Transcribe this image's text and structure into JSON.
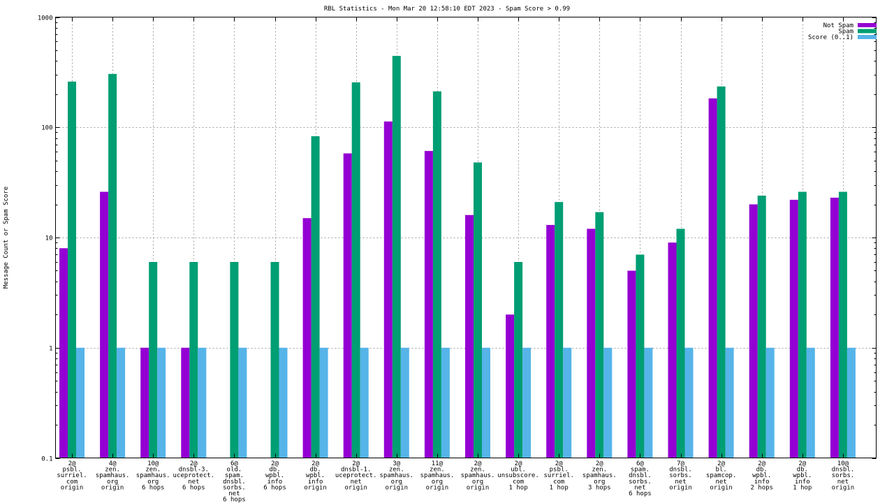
{
  "chart_data": {
    "type": "bar",
    "title": "RBL Statistics - Mon Mar 20 12:58:10 EDT 2023 - Spam Score > 0.99",
    "xlabel": "",
    "ylabel": "Message Count or Spam Score",
    "yscale": "log",
    "ylim": [
      0.1,
      1000
    ],
    "yticks": [
      0.1,
      1,
      10,
      100,
      1000
    ],
    "ytick_labels": [
      "0.1",
      "1",
      "10",
      "100",
      "1000"
    ],
    "grid": true,
    "legend_position": "top-right",
    "categories": [
      [
        "2@",
        "psbl.",
        "surriel.",
        "com",
        "origin"
      ],
      [
        "4@",
        "zen.",
        "spamhaus.",
        "org",
        "origin"
      ],
      [
        "10@",
        "zen.",
        "spamhaus.",
        "org",
        "6 hops"
      ],
      [
        "2@",
        "dnsbl-3.",
        "uceprotect.",
        "net",
        "6 hops"
      ],
      [
        "6@",
        "old.",
        "spam.",
        "dnsbl.",
        "sorbs.",
        "net",
        "6 hops"
      ],
      [
        "2@",
        "db.",
        "wpbl.",
        "info",
        "6 hops"
      ],
      [
        "2@",
        "db.",
        "wpbl.",
        "info",
        "origin"
      ],
      [
        "2@",
        "dnsbl-1.",
        "uceprotect.",
        "net",
        "origin"
      ],
      [
        "3@",
        "zen.",
        "spamhaus.",
        "org",
        "origin"
      ],
      [
        "11@",
        "zen.",
        "spamhaus.",
        "org",
        "origin"
      ],
      [
        "2@",
        "zen.",
        "spamhaus.",
        "org",
        "origin"
      ],
      [
        "2@",
        "ubl.",
        "unsubscore.",
        "com",
        "1 hop"
      ],
      [
        "2@",
        "psbl.",
        "surriel.",
        "com",
        "1 hop"
      ],
      [
        "2@",
        "zen.",
        "spamhaus.",
        "org",
        "3 hops"
      ],
      [
        "6@",
        "spam.",
        "dnsbl.",
        "sorbs.",
        "net",
        "6 hops"
      ],
      [
        "7@",
        "dnsbl.",
        "sorbs.",
        "net",
        "origin"
      ],
      [
        "2@",
        "bl.",
        "spamcop.",
        "net",
        "origin"
      ],
      [
        "2@",
        "db.",
        "wpbl.",
        "info",
        "2 hops"
      ],
      [
        "2@",
        "db.",
        "wpbl.",
        "info",
        "1 hop"
      ],
      [
        "10@",
        "dnsbl.",
        "sorbs.",
        "net",
        "origin"
      ]
    ],
    "series": [
      {
        "name": "Not Spam",
        "color": "#9400d3",
        "values": [
          8,
          26,
          1,
          1,
          0,
          0,
          15,
          58,
          113,
          61,
          16,
          2,
          13,
          12,
          5,
          9,
          183,
          20,
          22,
          23
        ]
      },
      {
        "name": "Spam",
        "color": "#009e73",
        "values": [
          260,
          305,
          6,
          6,
          6,
          6,
          83,
          256,
          445,
          212,
          48,
          6,
          21,
          17,
          7,
          12,
          235,
          24,
          26,
          26
        ]
      },
      {
        "name": "Score (0..1)",
        "color": "#56b4e9",
        "values": [
          1,
          1,
          1,
          1,
          1,
          1,
          1,
          1,
          1,
          1,
          1,
          1,
          1,
          1,
          1,
          1,
          1,
          1,
          1,
          1
        ]
      }
    ]
  }
}
